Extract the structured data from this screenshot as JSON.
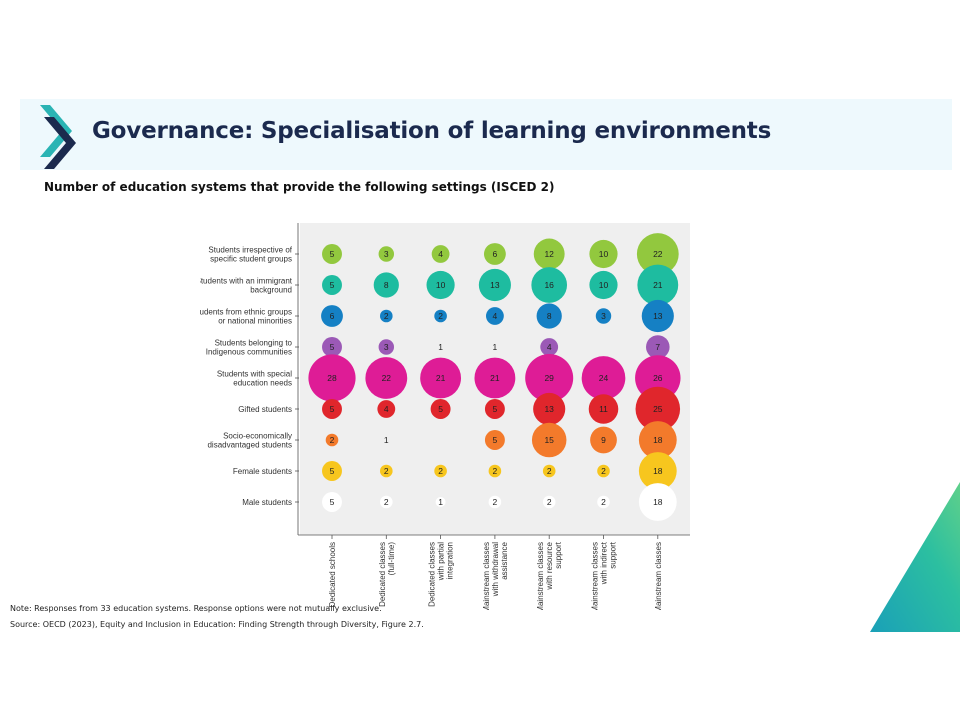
{
  "slide": {
    "title": "Governance: Specialisation of learning environments",
    "subtitle": "Number of education systems that provide the following settings (ISCED 2)",
    "note": "Note: Responses from 33 education systems. Response options were not mutually exclusive.",
    "source": "Source: OECD (2023), Equity and Inclusion in Education: Finding Strength through Diversity, Figure 2.7."
  },
  "chart_data": {
    "type": "bubble",
    "title": "Number of education systems that provide the following settings (ISCED 2)",
    "categories": [
      [
        "Dedicated schools"
      ],
      [
        "Dedicated classes",
        "(full-time)"
      ],
      [
        "Dedicated classes",
        "with partial",
        "integration"
      ],
      [
        "Mainstream classes",
        "with withdrawal",
        "assistance"
      ],
      [
        "Mainstream classes",
        "with resource",
        "support"
      ],
      [
        "Mainstream classes",
        "with indirect",
        "support"
      ],
      [
        "Mainstream classes"
      ]
    ],
    "series": [
      {
        "label": [
          "Students irrespective of",
          "specific student groups"
        ],
        "color": "#92c83e",
        "values": [
          5,
          3,
          4,
          6,
          12,
          10,
          22
        ]
      },
      {
        "label": [
          "Students with an immigrant",
          "background"
        ],
        "color": "#1ebca0",
        "values": [
          5,
          8,
          10,
          13,
          16,
          10,
          21
        ]
      },
      {
        "label": [
          "Students from ethnic groups",
          "or national minorities"
        ],
        "color": "#1580c4",
        "values": [
          6,
          2,
          2,
          4,
          8,
          3,
          13
        ]
      },
      {
        "label": [
          "Students belonging to",
          "Indigenous communities"
        ],
        "color": "#9b59b6",
        "values": [
          5,
          3,
          1,
          1,
          4,
          null,
          7
        ]
      },
      {
        "label": [
          "Students with special",
          "education needs"
        ],
        "color": "#de1c96",
        "values": [
          28,
          22,
          21,
          21,
          29,
          24,
          26
        ]
      },
      {
        "label": [
          "Gifted students"
        ],
        "color": "#e0262c",
        "values": [
          5,
          4,
          5,
          5,
          13,
          11,
          25
        ]
      },
      {
        "label": [
          "Socio-economically",
          "disadvantaged students"
        ],
        "color": "#f37a2b",
        "values": [
          2,
          1,
          null,
          5,
          15,
          9,
          18
        ]
      },
      {
        "label": [
          "Female students"
        ],
        "color": "#f7c61e",
        "values": [
          5,
          2,
          2,
          2,
          2,
          2,
          18
        ]
      },
      {
        "label": [
          "Male students"
        ],
        "color": "#ffffff",
        "values": [
          5,
          2,
          1,
          2,
          2,
          2,
          18
        ]
      }
    ],
    "grid": false
  }
}
